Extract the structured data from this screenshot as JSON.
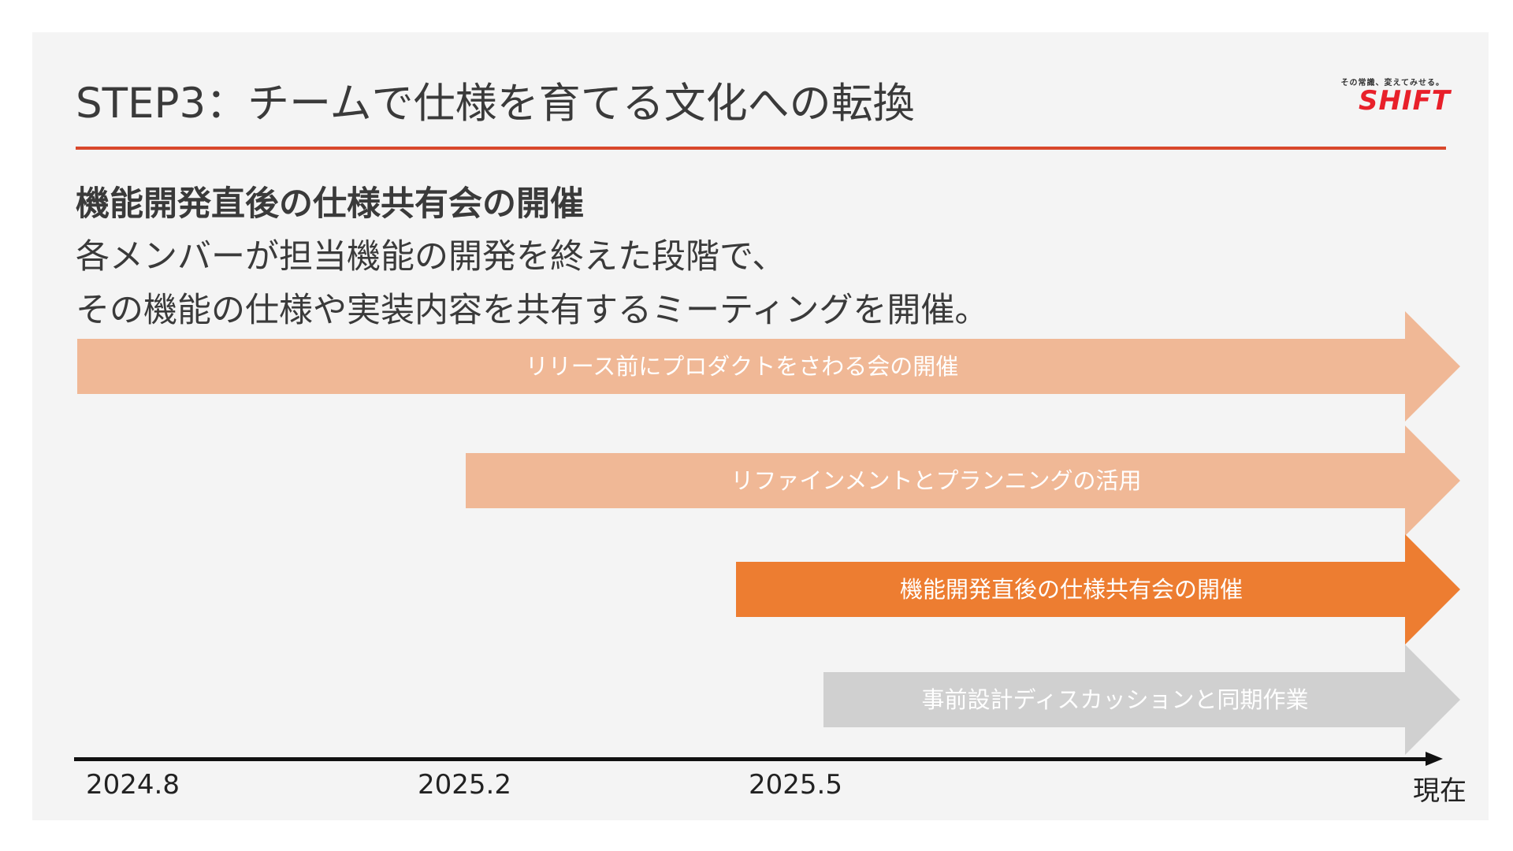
{
  "title": "STEP3：チームで仕様を育てる文化への転換",
  "logo": {
    "tagline": "その常識、変えてみせる。",
    "wordmark": "SHIFT"
  },
  "subhead": "機能開発直後の仕様共有会の開催",
  "body": [
    "各メンバーが担当機能の開発を終えた段階で、",
    "その機能の仕様や実装内容を共有するミーティングを開催。"
  ],
  "arrows": [
    {
      "label": "リリース前にプロダクトをさわる会の開催",
      "start": "2024.8",
      "color": "#f0b896"
    },
    {
      "label": "リファインメントとプランニングの活用",
      "start": "2025.2",
      "color": "#f0b896"
    },
    {
      "label": "機能開発直後の仕様共有会の開催",
      "start": "2025.5",
      "color": "#ed7d31"
    },
    {
      "label": "事前設計ディスカッションと同期作業",
      "start": "",
      "color": "#d0d0d0"
    }
  ],
  "timeline": {
    "ticks": [
      "2024.8",
      "2025.2",
      "2025.5",
      "現在"
    ]
  },
  "colors": {
    "accent_rule": "#d9472b",
    "brand_red": "#e8202a",
    "highlight_orange": "#ed7d31",
    "light_orange": "#f0b896",
    "gray": "#d0d0d0"
  }
}
